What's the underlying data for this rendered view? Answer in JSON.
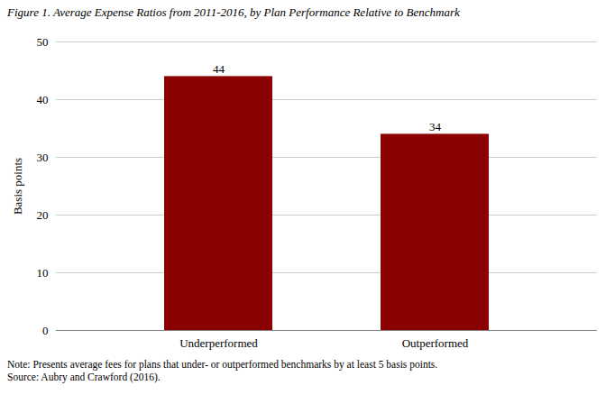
{
  "chart_data": {
    "type": "bar",
    "title": "Figure 1. Average Expense Ratios from 2011-2016, by Plan Performance Relative to Benchmark",
    "categories": [
      "Underperformed",
      "Outperformed"
    ],
    "values": [
      44,
      34
    ],
    "color": "#8B0000",
    "ylabel": "Basis points",
    "ylim": [
      0,
      50
    ],
    "yticks": [
      0,
      10,
      20,
      30,
      40,
      50
    ],
    "grid": true,
    "data_labels": true,
    "annotations": [
      "Note: Presents average fees for plans that under- or outperformed benchmarks by at least 5 basis points.",
      "Source: Aubry and Crawford (2016)."
    ]
  }
}
